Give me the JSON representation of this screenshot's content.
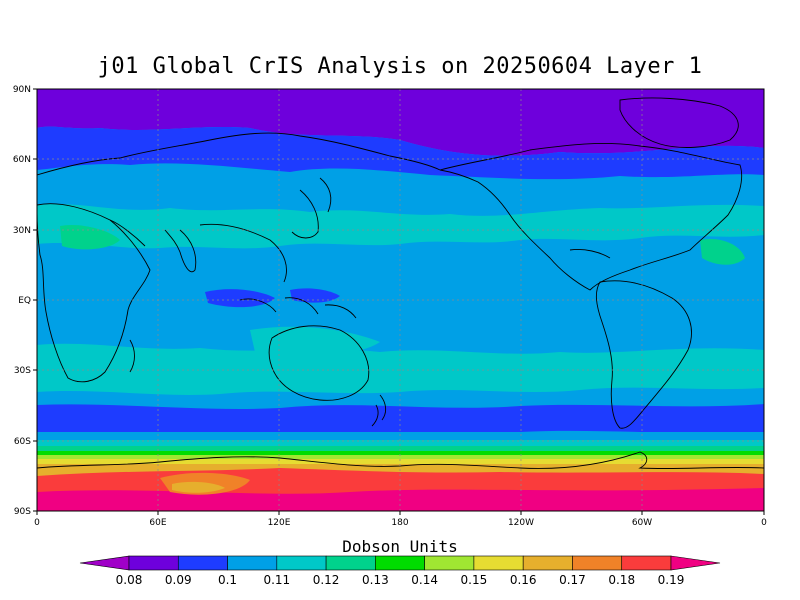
{
  "title": "j01 Global CrIS Analysis on 20250604 Layer 1",
  "lat_labels": [
    "90N",
    "60N",
    "30N",
    "EQ",
    "30S",
    "60S",
    "90S"
  ],
  "lon_labels": [
    "0",
    "60E",
    "120E",
    "180",
    "120W",
    "60W",
    "0"
  ],
  "colorbar": {
    "title": "Dobson Units",
    "labels": [
      "0.08",
      "0.09",
      "0.1",
      "0.11",
      "0.12",
      "0.13",
      "0.14",
      "0.15",
      "0.16",
      "0.17",
      "0.18",
      "0.19"
    ],
    "colors": [
      "#a000c8",
      "#6e00dc",
      "#1e3cff",
      "#00a0e6",
      "#00c8c8",
      "#00d28c",
      "#00dc00",
      "#a0e632",
      "#e6dc32",
      "#e6af2d",
      "#f08228",
      "#fa3c3c",
      "#f00082"
    ]
  },
  "map_colors": {
    "arctic": "#6e00dc",
    "high_lat": "#1e3cff",
    "mid_lat": "#00a0e6",
    "subtropics": "#00c8c8",
    "antarctic_core": "#f00082"
  }
}
